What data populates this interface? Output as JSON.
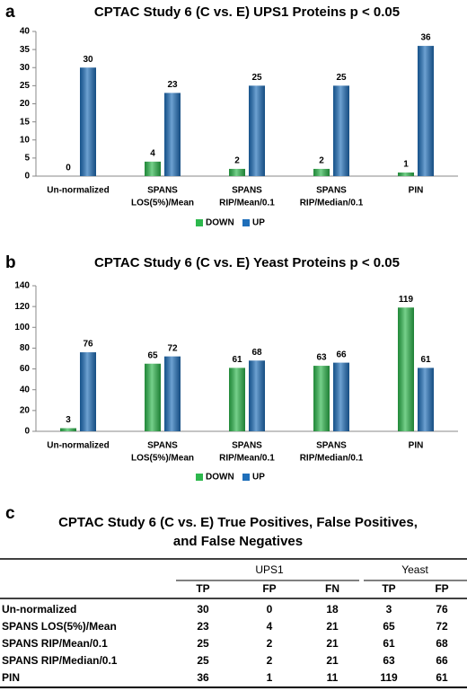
{
  "chart_data": [
    {
      "type": "bar",
      "panel_label": "a",
      "title": "CPTAC Study 6 (C vs. E) UPS1 Proteins p < 0.05",
      "categories": [
        [
          "Un-normalized"
        ],
        [
          "SPANS",
          "LOS(5%)/Mean"
        ],
        [
          "SPANS",
          "RIP/Mean/0.1"
        ],
        [
          "SPANS",
          "RIP/Median/0.1"
        ],
        [
          "PIN"
        ]
      ],
      "series": [
        {
          "name": "DOWN",
          "color": "#2db84d",
          "values": [
            0,
            4,
            2,
            2,
            1
          ]
        },
        {
          "name": "UP",
          "color": "#1f6fba",
          "values": [
            30,
            23,
            25,
            25,
            36
          ]
        }
      ],
      "ylim": [
        0,
        40
      ],
      "yticks": [
        0,
        5,
        10,
        15,
        20,
        25,
        30,
        35,
        40
      ],
      "grid": false,
      "legend": "bottom"
    },
    {
      "type": "bar",
      "panel_label": "b",
      "title": "CPTAC Study 6 (C vs. E) Yeast Proteins p < 0.05",
      "categories": [
        [
          "Un-normalized"
        ],
        [
          "SPANS",
          "LOS(5%)/Mean"
        ],
        [
          "SPANS",
          "RIP/Mean/0.1"
        ],
        [
          "SPANS",
          "RIP/Median/0.1"
        ],
        [
          "PIN"
        ]
      ],
      "series": [
        {
          "name": "DOWN",
          "color": "#2db84d",
          "values": [
            3,
            65,
            61,
            63,
            119
          ]
        },
        {
          "name": "UP",
          "color": "#1f6fba",
          "values": [
            76,
            72,
            68,
            66,
            61
          ]
        }
      ],
      "ylim": [
        0,
        140
      ],
      "yticks": [
        0,
        20,
        40,
        60,
        80,
        100,
        120,
        140
      ],
      "grid": false,
      "legend": "bottom"
    }
  ],
  "table": {
    "panel_label": "c",
    "title": [
      "CPTAC Study 6 (C vs. E) True Positives, False Positives,",
      "and False Negatives"
    ],
    "groups": [
      "UPS1",
      "Yeast"
    ],
    "columns": [
      "TP",
      "FP",
      "FN",
      "TP",
      "FP"
    ],
    "rows": [
      [
        "Un-normalized",
        30,
        0,
        18,
        3,
        76
      ],
      [
        "SPANS LOS(5%)/Mean",
        23,
        4,
        21,
        65,
        72
      ],
      [
        "SPANS RIP/Mean/0.1",
        25,
        2,
        21,
        61,
        68
      ],
      [
        "SPANS RIP/Median/0.1",
        25,
        2,
        21,
        63,
        66
      ],
      [
        "PIN",
        36,
        1,
        11,
        119,
        61
      ]
    ]
  }
}
